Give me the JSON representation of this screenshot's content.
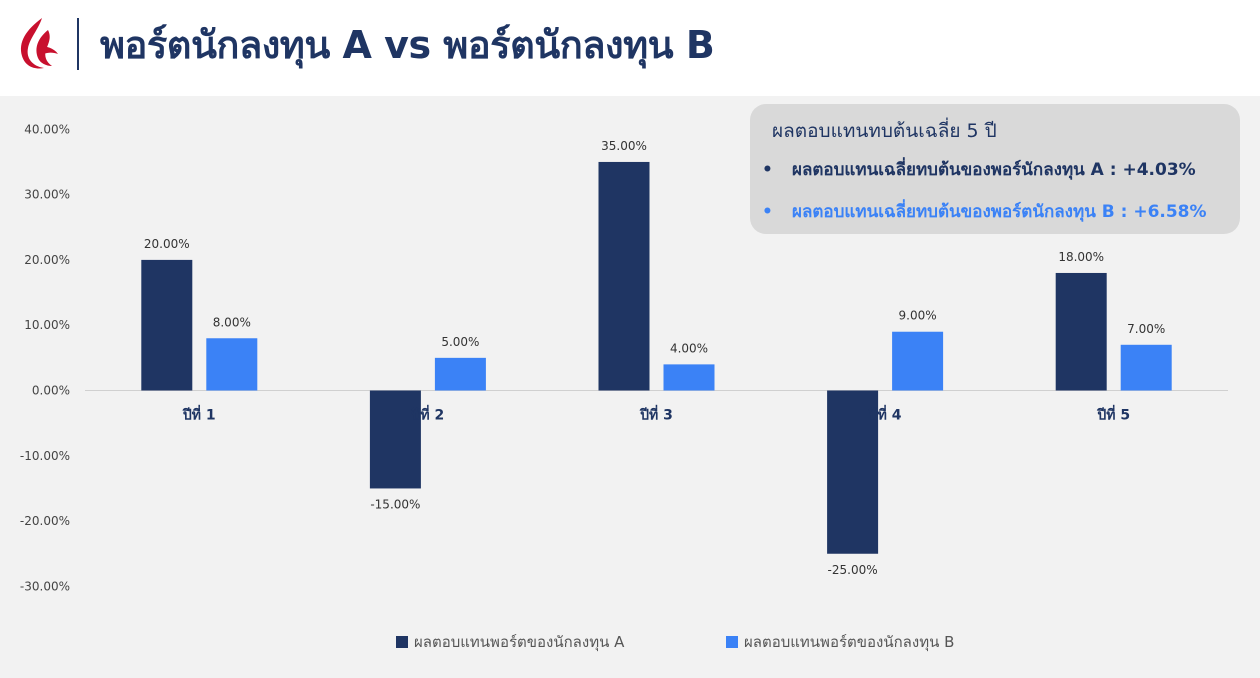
{
  "header": {
    "title": "พอร์ตนักลงทุน A vs พอร์ตนักลงทุน B"
  },
  "summary": {
    "title": "ผลตอบแทนทบต้นเฉลี่ย 5 ปี",
    "line_a": "ผลตอบแทนเฉลี่ยทบต้นของพอร์นักลงทุน A : +4.03%",
    "line_b": "ผลตอบแทนเฉลี่ยทบต้นของพอร์ตนักลงทุน B : +6.58%",
    "bullet": "•"
  },
  "colors": {
    "series_a": "#1f3563",
    "series_b": "#3b82f6",
    "logo": "#c8102e"
  },
  "chart_data": {
    "type": "bar",
    "categories": [
      "ปีที่ 1",
      "ปีที่ 2",
      "ปีที่ 3",
      "ปีที่ 4",
      "ปีที่ 5"
    ],
    "series": [
      {
        "name": "ผลตอบแทนพอร์ตของนักลงทุน A",
        "values": [
          20,
          -15,
          35,
          -25,
          18
        ],
        "labels": [
          "20.00%",
          "-15.00%",
          "35.00%",
          "-25.00%",
          "18.00%"
        ]
      },
      {
        "name": "ผลตอบแทนพอร์ตของนักลงทุน B",
        "values": [
          8,
          5,
          4,
          9,
          7
        ],
        "labels": [
          "8.00%",
          "5.00%",
          "4.00%",
          "9.00%",
          "7.00%"
        ]
      }
    ],
    "yticks": [
      40,
      30,
      20,
      10,
      0,
      -10,
      -20,
      -30
    ],
    "ytick_labels": [
      "40.00%",
      "30.00%",
      "20.00%",
      "10.00%",
      "0.00%",
      "-10.00%",
      "-20.00%",
      "-30.00%"
    ],
    "ylim": [
      -30,
      40
    ],
    "grid": false,
    "legend": "bottom"
  }
}
